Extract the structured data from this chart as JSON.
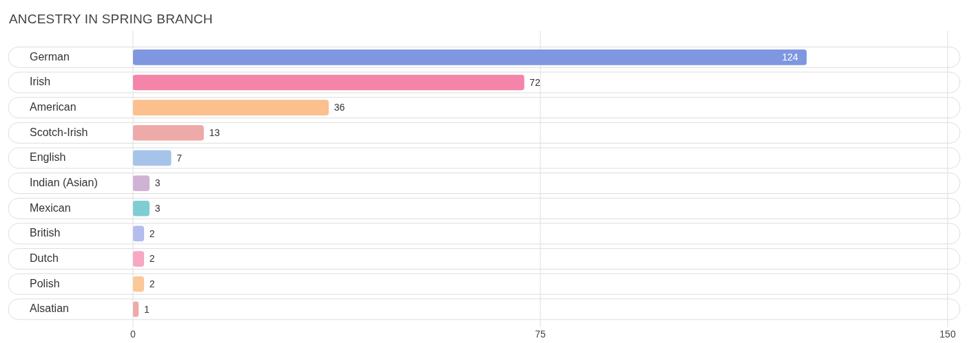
{
  "chart_data": {
    "type": "bar",
    "orientation": "horizontal",
    "title": "ANCESTRY IN SPRING BRANCH",
    "categories": [
      "German",
      "Irish",
      "American",
      "Scotch-Irish",
      "English",
      "Indian (Asian)",
      "Mexican",
      "British",
      "Dutch",
      "Polish",
      "Alsatian"
    ],
    "values": [
      124,
      72,
      36,
      13,
      7,
      3,
      3,
      2,
      2,
      2,
      1
    ],
    "colors": [
      "#7f96e0",
      "#f484a8",
      "#fbc08e",
      "#eeaaa8",
      "#a6c4ea",
      "#cfb2d4",
      "#7ecdd3",
      "#b4bdee",
      "#f8a7c4",
      "#fbc89a",
      "#eeaaaa"
    ],
    "xlim": [
      0,
      150
    ],
    "xticks": [
      0,
      75,
      150
    ],
    "grid": "x",
    "data_labels": true
  }
}
